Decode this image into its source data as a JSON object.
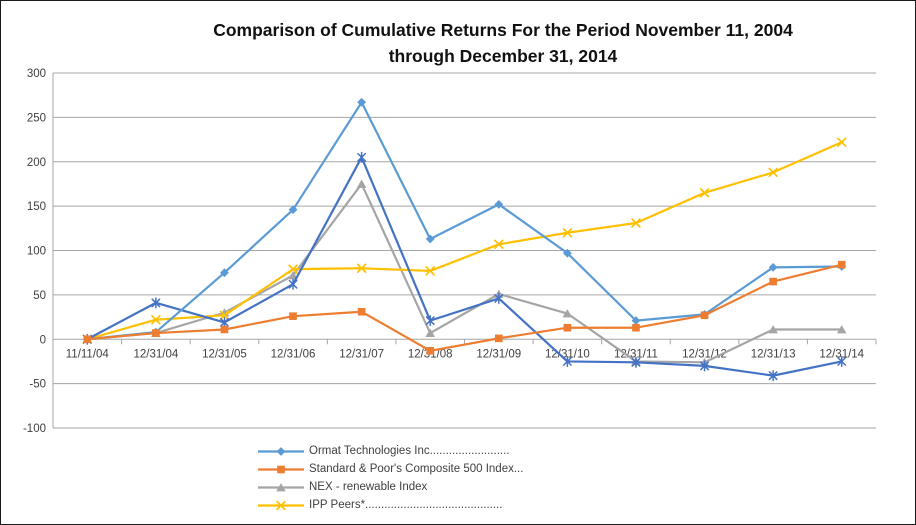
{
  "window": {
    "background": "#ffffff",
    "border_color": "#1a1a1a"
  },
  "chart_data": {
    "type": "line",
    "title": "Comparison of Cumulative Returns For the Period November 11, 2004 through December 31, 2014",
    "title_lines": [
      "Comparison of Cumulative Returns For the Period November 11, 2004",
      "through December 31, 2014"
    ],
    "xlabel": "",
    "ylabel": "",
    "ylim": [
      -100,
      300
    ],
    "ytick_step": 50,
    "yticks": [
      -100,
      -50,
      0,
      50,
      100,
      150,
      200,
      250,
      300
    ],
    "grid": "horizontal",
    "legend_position": "bottom-left",
    "grid_color": "#a6a6a6",
    "axis_color": "#a6a6a6",
    "label_color": "#3f3f3f",
    "categories": [
      "11/11/04",
      "12/31/04",
      "12/31/05",
      "12/31/06",
      "12/31/07",
      "12/31/08",
      "12/31/09",
      "12/31/10",
      "12/31/11",
      "12/31/12",
      "12/31/13",
      "12/31/14"
    ],
    "series": [
      {
        "id": "ormat",
        "name": "Ormat Technologies Inc.........................",
        "color": "#5b9bd5",
        "marker": "diamond",
        "in_legend": true,
        "z": 3,
        "values": [
          0,
          8,
          75,
          146,
          267,
          113,
          152,
          97,
          21,
          28,
          81,
          82
        ]
      },
      {
        "id": "sp500",
        "name": "Standard & Poor's Composite 500 Index...",
        "color": "#ed7d31",
        "marker": "square",
        "in_legend": true,
        "z": 4,
        "values": [
          0,
          7,
          11,
          26,
          31,
          -13,
          1,
          13,
          13,
          27,
          65,
          84
        ]
      },
      {
        "id": "nex",
        "name": "NEX - renewable Index",
        "color": "#a5a5a5",
        "marker": "triangle",
        "in_legend": true,
        "z": 0,
        "values": [
          0,
          7,
          30,
          72,
          175,
          7,
          51,
          29,
          -25,
          -26,
          11,
          11
        ]
      },
      {
        "id": "ipp-peers",
        "name": "IPP Peers*...........................................",
        "color": "#ffc000",
        "marker": "x",
        "in_legend": true,
        "z": 1,
        "values": [
          0,
          22,
          27,
          79,
          80,
          77,
          107,
          120,
          131,
          165,
          188,
          222
        ]
      },
      {
        "id": "unlabeled-series",
        "name": "",
        "color": "#4472c4",
        "marker": "asterisk",
        "in_legend": false,
        "z": 2,
        "values": [
          0,
          41,
          19,
          62,
          205,
          21,
          46,
          -25,
          -26,
          -30,
          -41,
          -25
        ]
      }
    ]
  }
}
